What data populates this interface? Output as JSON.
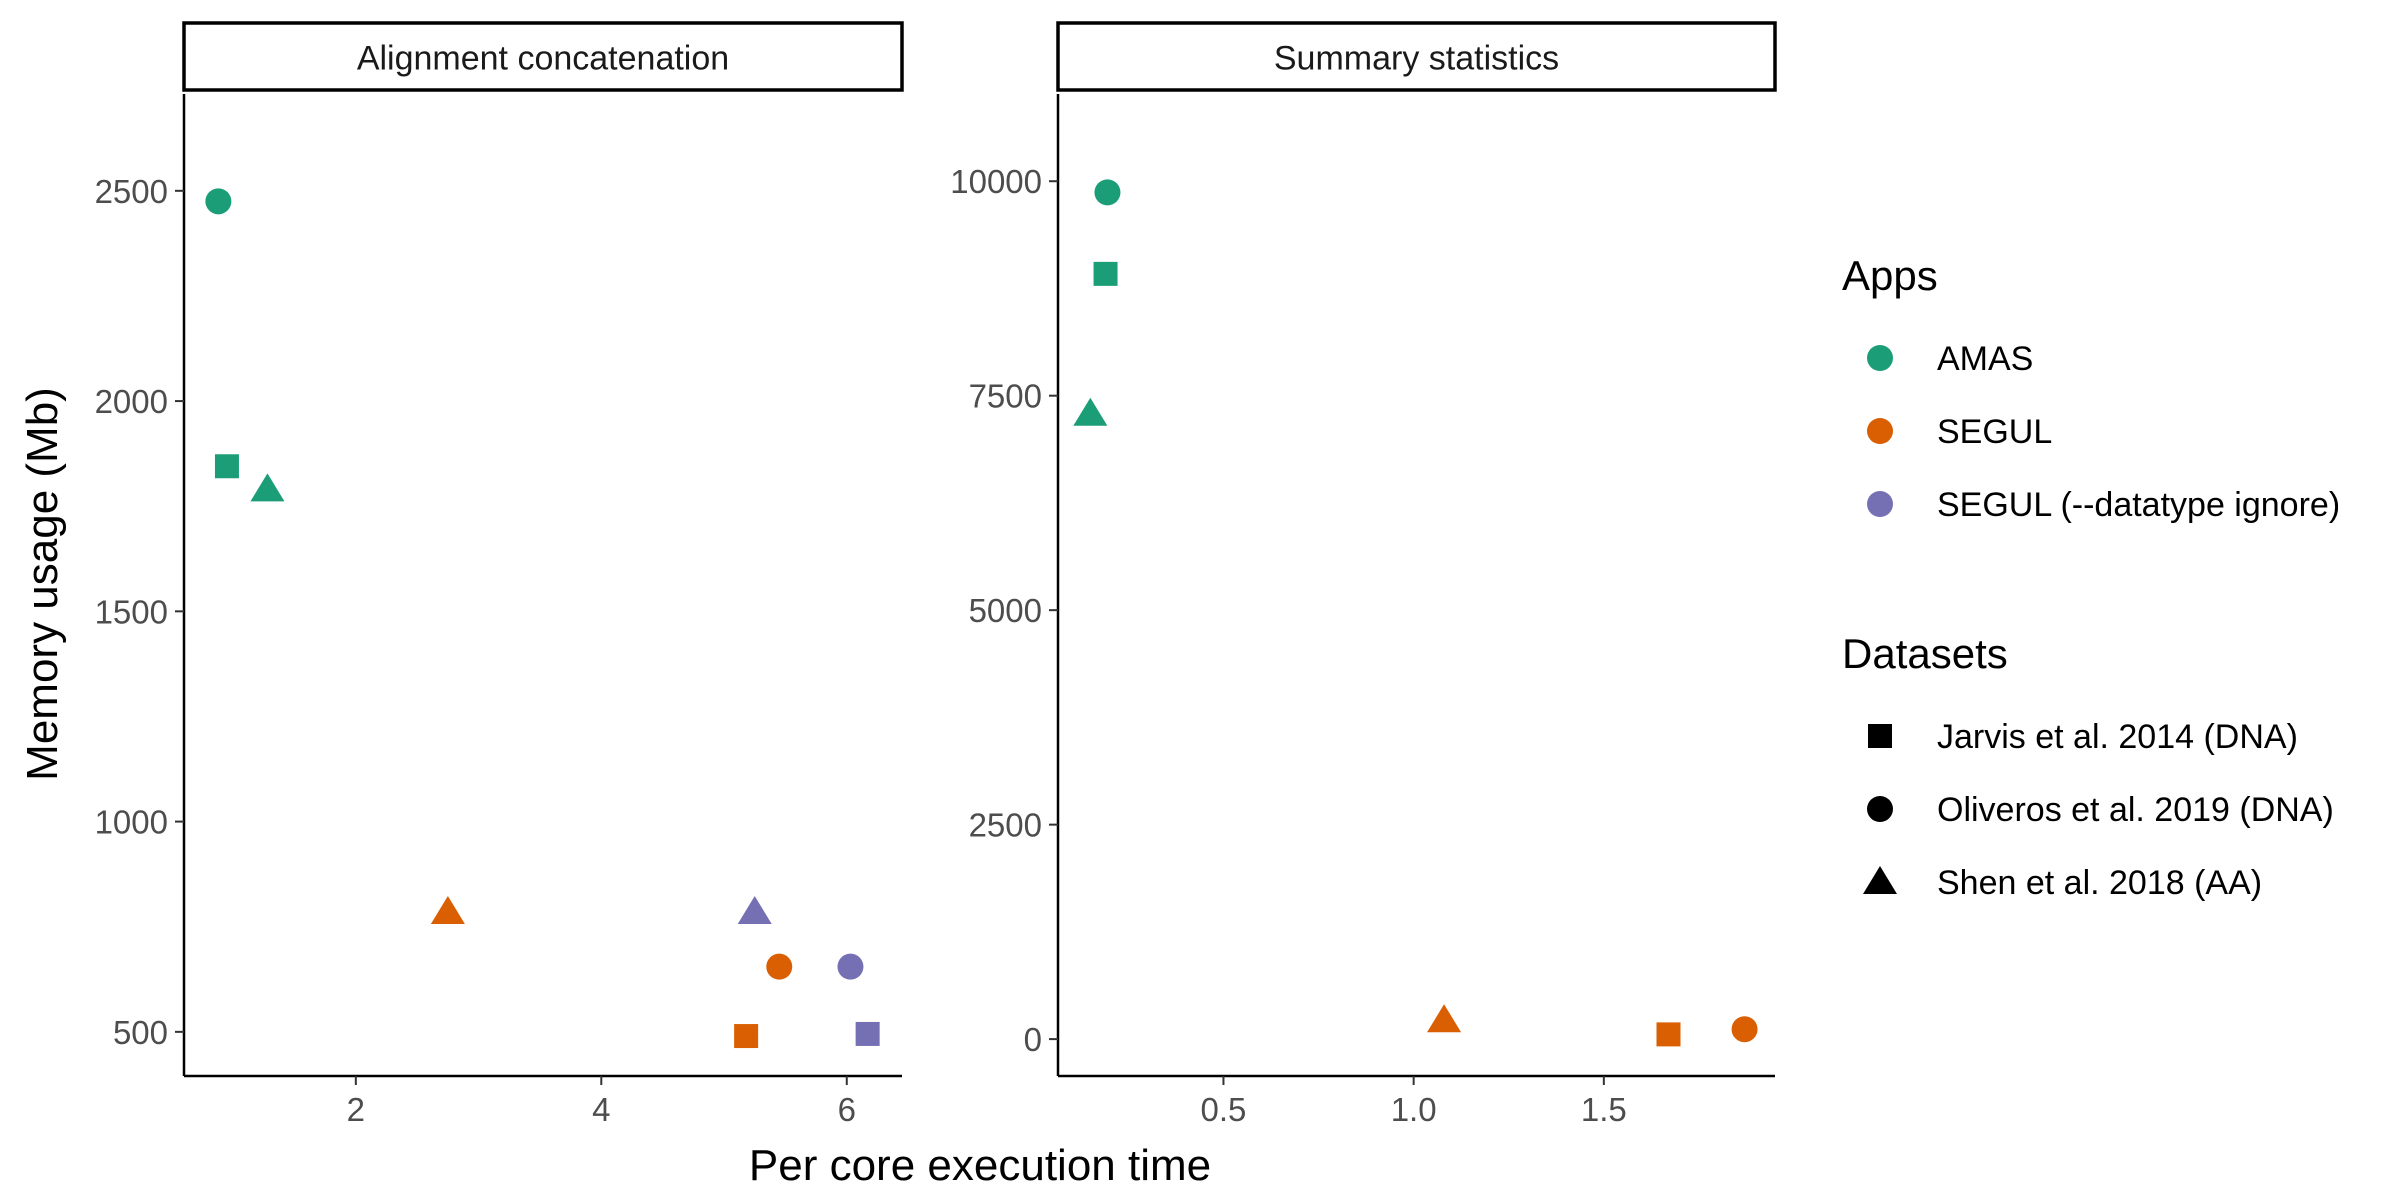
{
  "chart_data": {
    "type": "scatter",
    "xlabel": "Per core execution time",
    "ylabel": "Memory usage (Mb)",
    "colors": {
      "AMAS": "#1b9e77",
      "SEGUL": "#d95f02",
      "SEGUL (--datatype ignore)": "#7570b3"
    },
    "legend": {
      "placement": "right",
      "apps_title": "Apps",
      "apps": [
        "AMAS",
        "SEGUL",
        "SEGUL (--datatype ignore)"
      ],
      "datasets_title": "Datasets",
      "datasets": [
        {
          "label": "Jarvis et al. 2014 (DNA)",
          "shape": "square"
        },
        {
          "label": "Oliveros et al. 2019 (DNA)",
          "shape": "circle"
        },
        {
          "label": "Shen et al. 2018 (AA)",
          "shape": "triangle"
        }
      ]
    },
    "panels": [
      {
        "title": "Alignment concatenation",
        "xlim": [
          0.6,
          6.45
        ],
        "ylim": [
          395,
          2735
        ],
        "xticks": [
          2,
          4,
          6
        ],
        "xtick_labels": [
          "2",
          "4",
          "6"
        ],
        "yticks": [
          500,
          1000,
          1500,
          2000,
          2500
        ],
        "ytick_labels": [
          "500",
          "1000",
          "1500",
          "2000",
          "2500"
        ],
        "points": [
          {
            "app": "AMAS",
            "dataset": "Oliveros et al. 2019 (DNA)",
            "x": 0.88,
            "y": 2475
          },
          {
            "app": "AMAS",
            "dataset": "Jarvis et al. 2014 (DNA)",
            "x": 0.95,
            "y": 1845
          },
          {
            "app": "AMAS",
            "dataset": "Shen et al. 2018 (AA)",
            "x": 1.28,
            "y": 1790
          },
          {
            "app": "SEGUL",
            "dataset": "Shen et al. 2018 (AA)",
            "x": 2.75,
            "y": 785
          },
          {
            "app": "SEGUL",
            "dataset": "Oliveros et al. 2019 (DNA)",
            "x": 5.45,
            "y": 655
          },
          {
            "app": "SEGUL",
            "dataset": "Jarvis et al. 2014 (DNA)",
            "x": 5.18,
            "y": 490
          },
          {
            "app": "SEGUL (--datatype ignore)",
            "dataset": "Shen et al. 2018 (AA)",
            "x": 5.25,
            "y": 785
          },
          {
            "app": "SEGUL (--datatype ignore)",
            "dataset": "Oliveros et al. 2019 (DNA)",
            "x": 6.03,
            "y": 655
          },
          {
            "app": "SEGUL (--datatype ignore)",
            "dataset": "Jarvis et al. 2014 (DNA)",
            "x": 6.17,
            "y": 495
          }
        ]
      },
      {
        "title": "Summary statistics",
        "xlim": [
          0.065,
          1.95
        ],
        "ylim": [
          -430,
          11040
        ],
        "xticks": [
          0.5,
          1.0,
          1.5
        ],
        "xtick_labels": [
          "0.5",
          "1.0",
          "1.5"
        ],
        "yticks": [
          0,
          2500,
          5000,
          7500,
          10000
        ],
        "ytick_labels": [
          "0",
          "2500",
          "5000",
          "7500",
          "10000"
        ],
        "points": [
          {
            "app": "AMAS",
            "dataset": "Oliveros et al. 2019 (DNA)",
            "x": 0.195,
            "y": 9870
          },
          {
            "app": "AMAS",
            "dataset": "Jarvis et al. 2014 (DNA)",
            "x": 0.19,
            "y": 8920
          },
          {
            "app": "AMAS",
            "dataset": "Shen et al. 2018 (AA)",
            "x": 0.15,
            "y": 7290
          },
          {
            "app": "SEGUL",
            "dataset": "Shen et al. 2018 (AA)",
            "x": 1.08,
            "y": 220
          },
          {
            "app": "SEGUL",
            "dataset": "Jarvis et al. 2014 (DNA)",
            "x": 1.67,
            "y": 55
          },
          {
            "app": "SEGUL",
            "dataset": "Oliveros et al. 2019 (DNA)",
            "x": 1.87,
            "y": 115
          }
        ]
      }
    ]
  }
}
